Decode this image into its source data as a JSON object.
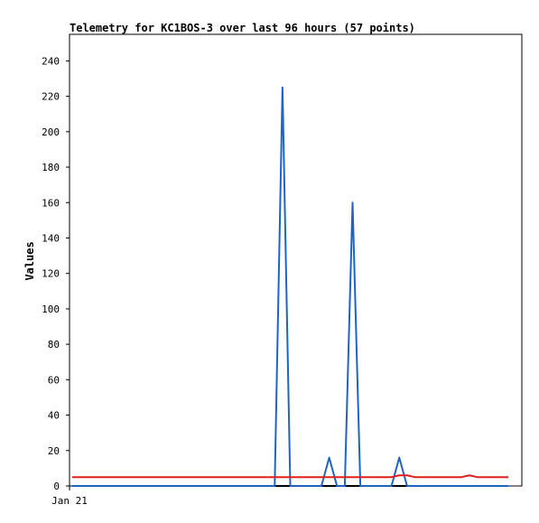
{
  "chart_data": {
    "type": "line",
    "title": "Telemetry for KC1BOS-3 over last 96 hours (57 points)",
    "xlabel": "",
    "ylabel": "Values",
    "ylim": [
      0,
      255
    ],
    "yticks": [
      0,
      20,
      40,
      60,
      80,
      100,
      120,
      140,
      160,
      180,
      200,
      220,
      240
    ],
    "x_tick_labels": [
      "Jan 21"
    ],
    "x_points": 57,
    "grid": false,
    "legend": "none",
    "series": [
      {
        "color": "#000000",
        "values": [
          0,
          0,
          0,
          0,
          0,
          0,
          0,
          0,
          0,
          0,
          0,
          0,
          0,
          0,
          0,
          0,
          0,
          0,
          0,
          0,
          0,
          0,
          0,
          0,
          0,
          0,
          0,
          0,
          0,
          0,
          0,
          0,
          0,
          0,
          0,
          0,
          0,
          0,
          0,
          0,
          0,
          0,
          0,
          0,
          0,
          0,
          0,
          0,
          0,
          0,
          0,
          0,
          0,
          0,
          0,
          0,
          0
        ]
      },
      {
        "color": "#1e64c8",
        "values": [
          0,
          0,
          0,
          0,
          0,
          0,
          0,
          0,
          0,
          0,
          0,
          0,
          0,
          0,
          0,
          0,
          0,
          0,
          0,
          0,
          0,
          0,
          0,
          0,
          0,
          0,
          0,
          225,
          0,
          0,
          0,
          0,
          0,
          16,
          0,
          0,
          160,
          0,
          0,
          0,
          0,
          0,
          16,
          0,
          0,
          0,
          0,
          0,
          0,
          0,
          0,
          0,
          0,
          0,
          0,
          0,
          0
        ]
      },
      {
        "color": "#e0201c",
        "values": [
          5,
          5,
          5,
          5,
          5,
          5,
          5,
          5,
          5,
          5,
          5,
          5,
          5,
          5,
          5,
          5,
          5,
          5,
          5,
          5,
          5,
          5,
          5,
          5,
          5,
          5,
          5,
          5,
          5,
          5,
          5,
          5,
          5,
          5,
          5,
          5,
          5,
          5,
          5,
          5,
          5,
          5,
          6,
          6,
          5,
          5,
          5,
          5,
          5,
          5,
          5,
          6,
          5,
          5,
          5,
          5,
          5
        ]
      }
    ]
  }
}
